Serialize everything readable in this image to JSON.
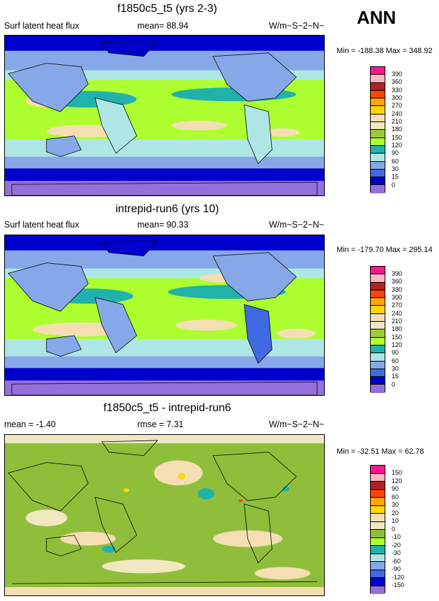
{
  "season": "ANN",
  "panels": [
    {
      "title": "f1850c5_t5 (yrs 2-3)",
      "left_label": "Surf latent heat flux",
      "center_label": "mean=  88.94",
      "units": "W/m~S~2~N~",
      "minmax": "Min = -188.38 Max = 348.92",
      "colorbar_labels": [
        "390",
        "360",
        "330",
        "300",
        "270",
        "240",
        "210",
        "180",
        "150",
        "120",
        "90",
        "60",
        "30",
        "15",
        "0"
      ]
    },
    {
      "title": "intrepid-run6 (yrs 10)",
      "left_label": "Surf latent heat flux",
      "center_label": "mean=  90.33",
      "units": "W/m~S~2~N~",
      "minmax": "Min = -179.70 Max = 295.14",
      "colorbar_labels": [
        "390",
        "360",
        "330",
        "300",
        "270",
        "240",
        "210",
        "180",
        "150",
        "120",
        "90",
        "60",
        "30",
        "15",
        "0"
      ]
    },
    {
      "title": "f1850c5_t5 - intrepid-run6",
      "left_label": "mean =  -1.40",
      "center_label": "rmse =   7.31",
      "units": "W/m~S~2~N~",
      "minmax": "Min = -32.51 Max = 62.78",
      "colorbar_labels": [
        "150",
        "120",
        "90",
        "60",
        "30",
        "20",
        "10",
        "0",
        "-10",
        "-20",
        "-30",
        "-60",
        "-90",
        "-120",
        "-150"
      ]
    }
  ],
  "colors": {
    "abs_scale": [
      "#ff1493",
      "#ffb6c1",
      "#b22222",
      "#ff4500",
      "#ffa500",
      "#ffd700",
      "#f5deb3",
      "#f0e8c0",
      "#9acd32",
      "#adff2f",
      "#20b2aa",
      "#aee6e6",
      "#87a8e8",
      "#4169e1",
      "#0000cd",
      "#9370db"
    ],
    "diff_scale": [
      "#ff1493",
      "#ffb6c1",
      "#b22222",
      "#ff4500",
      "#ffa500",
      "#ffd700",
      "#f5deb3",
      "#f0e8c0",
      "#8fbf3a",
      "#adff2f",
      "#20b2aa",
      "#aee6e6",
      "#87a8e8",
      "#4169e1",
      "#0000cd",
      "#9370db"
    ],
    "land_outline": "#000000"
  }
}
